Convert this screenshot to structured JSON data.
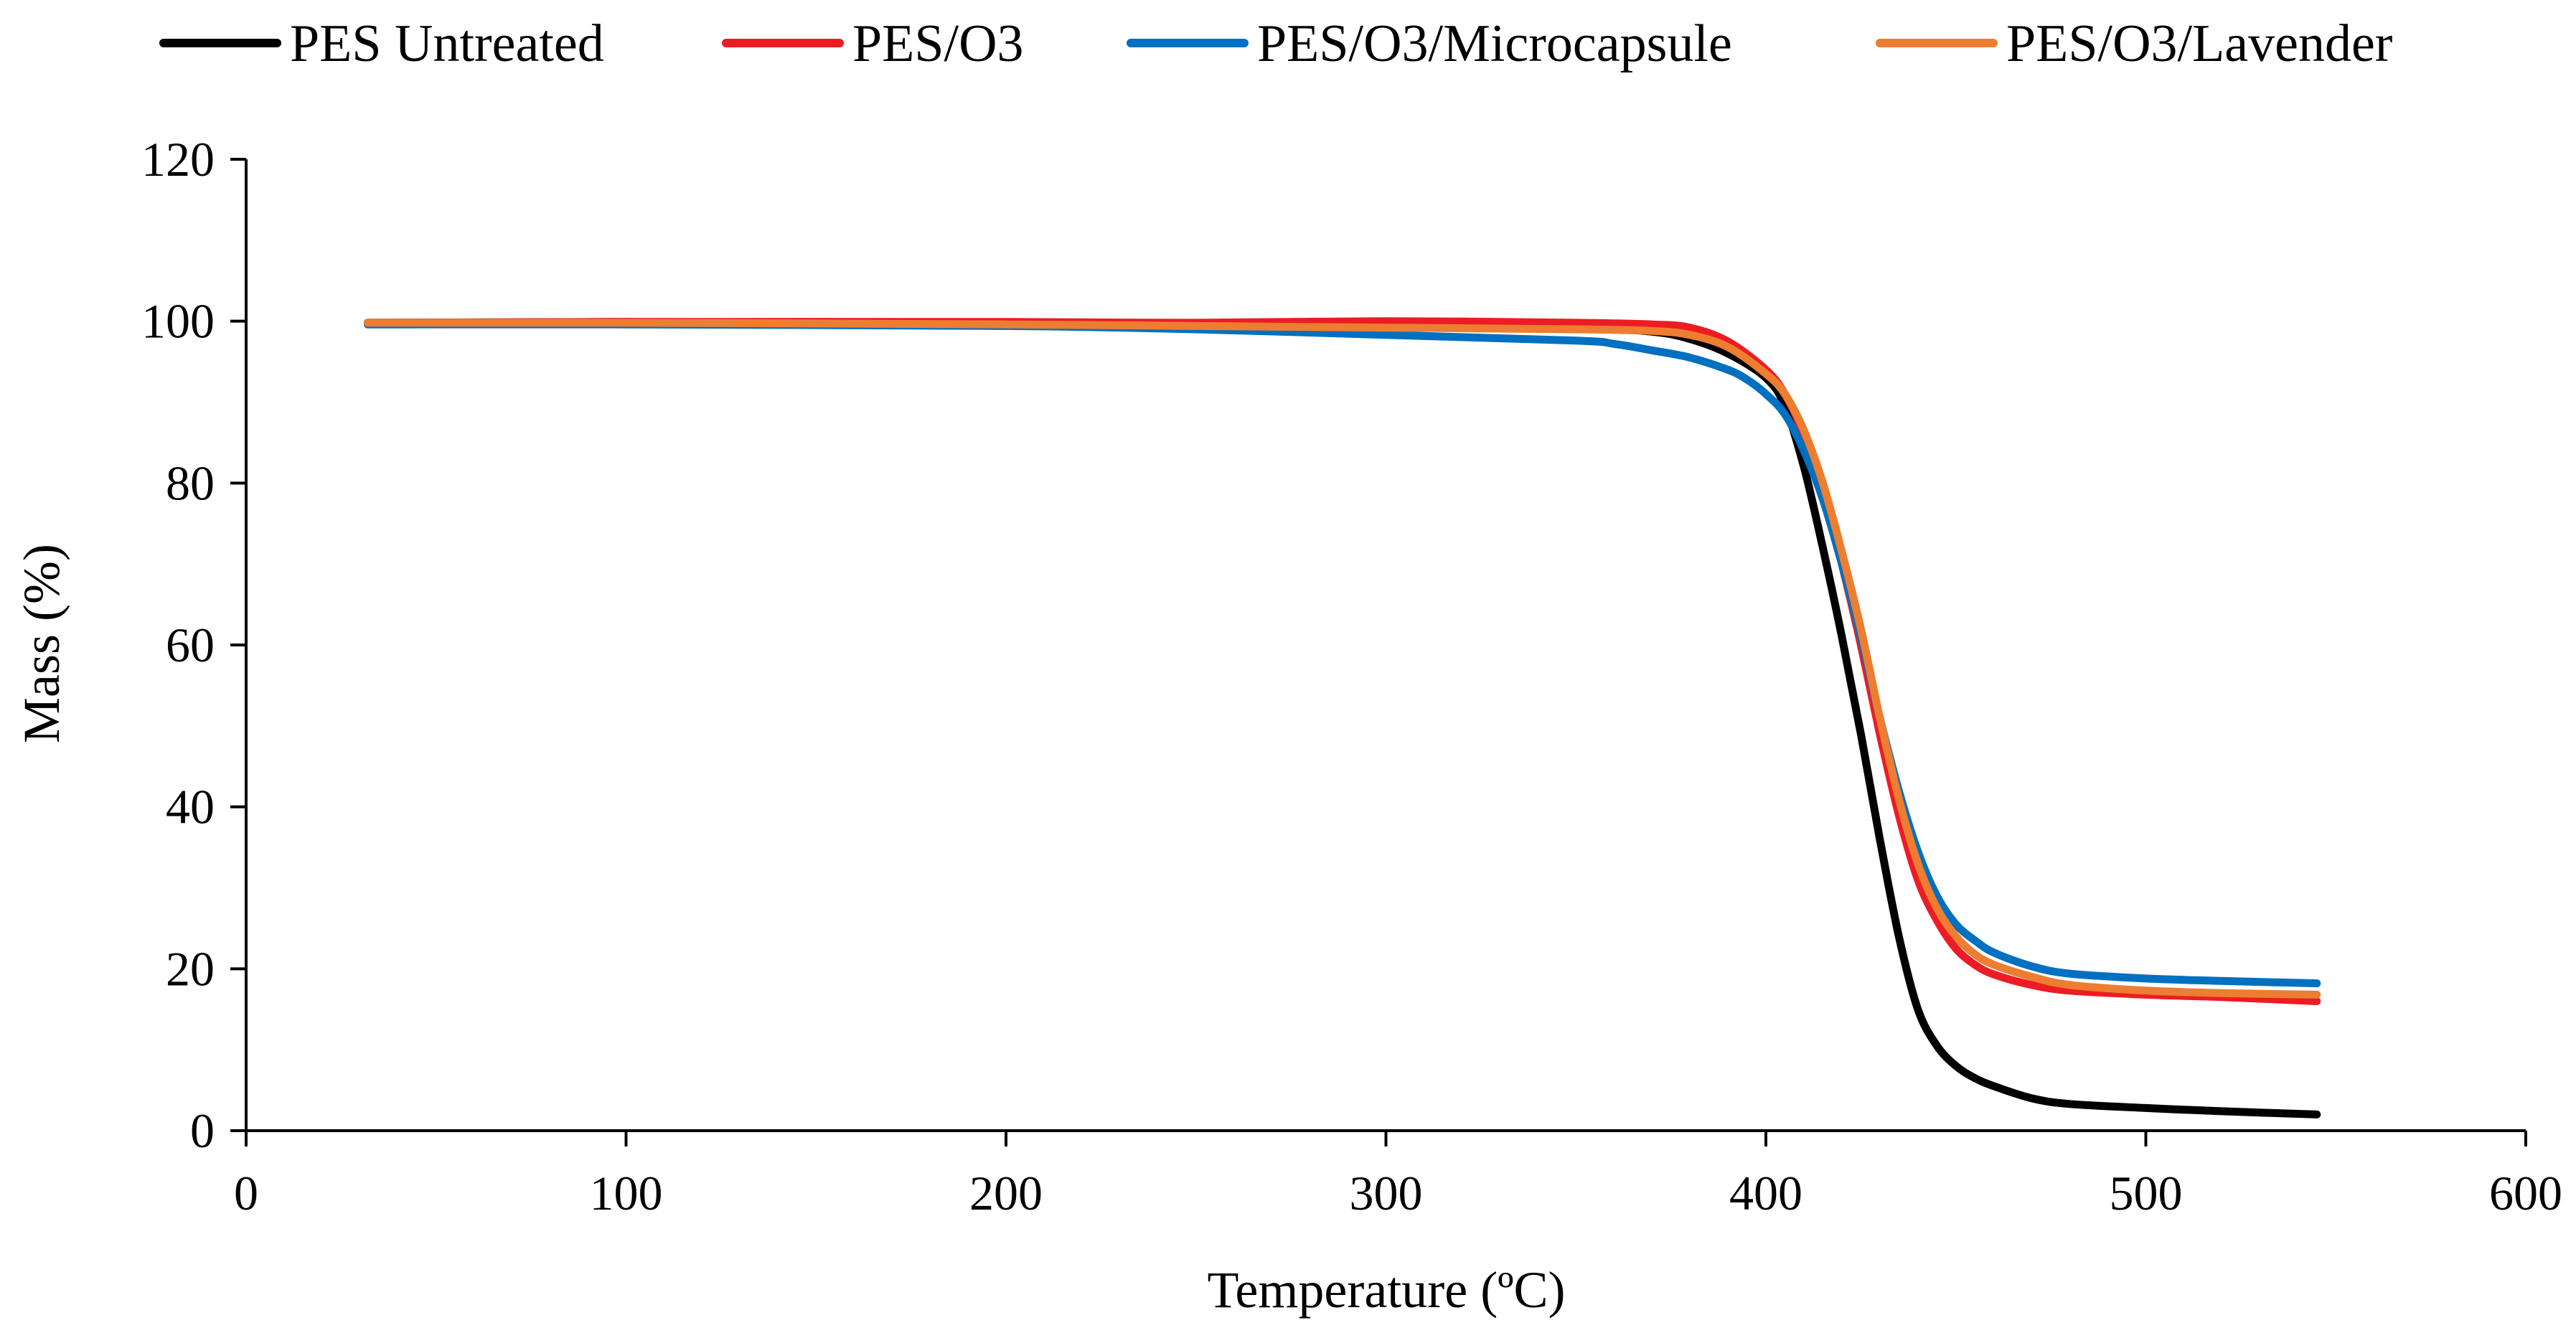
{
  "chart_data": {
    "type": "line",
    "title": "",
    "xlabel": "Temperature (ºC)",
    "ylabel": "Mass (%)",
    "xlim": [
      0,
      600
    ],
    "ylim": [
      0,
      120
    ],
    "xticks": [
      0,
      100,
      200,
      300,
      400,
      500,
      600
    ],
    "yticks": [
      0,
      20,
      40,
      60,
      80,
      100,
      120
    ],
    "xtick_labels": [
      "0",
      "100",
      "200",
      "300",
      "400",
      "500",
      "600"
    ],
    "ytick_labels": [
      "0",
      "20",
      "40",
      "60",
      "80",
      "100",
      "120"
    ],
    "grid": false,
    "legend_position": "top",
    "series": [
      {
        "name": "PES Untreated",
        "color": "#000000",
        "x": [
          32,
          100,
          200,
          250,
          300,
          350,
          370,
          380,
          390,
          400,
          405,
          410,
          415,
          420,
          425,
          430,
          435,
          440,
          445,
          450,
          455,
          460,
          470,
          480,
          500,
          520,
          545
        ],
        "y": [
          99.8,
          99.9,
          99.8,
          99.6,
          99.5,
          99.2,
          98.7,
          97.8,
          96.0,
          93.0,
          89.5,
          82.0,
          72.0,
          61.0,
          49.0,
          36.0,
          24.0,
          15.0,
          10.5,
          8.0,
          6.5,
          5.5,
          4.0,
          3.3,
          2.8,
          2.4,
          2.0
        ]
      },
      {
        "name": "PES/O3",
        "color": "#ED1C24",
        "x": [
          32,
          100,
          200,
          250,
          300,
          350,
          370,
          380,
          390,
          400,
          405,
          410,
          415,
          420,
          425,
          430,
          435,
          440,
          445,
          450,
          455,
          460,
          470,
          480,
          500,
          520,
          545
        ],
        "y": [
          99.8,
          99.9,
          99.9,
          99.8,
          100.0,
          99.8,
          99.6,
          99.2,
          97.5,
          94.0,
          91.0,
          86.0,
          79.0,
          70.0,
          60.0,
          49.0,
          39.0,
          31.0,
          26.0,
          22.5,
          20.5,
          19.3,
          18.0,
          17.3,
          16.8,
          16.5,
          16.0
        ]
      },
      {
        "name": "PES/O3/Microcapsule",
        "color": "#0070C0",
        "x": [
          32,
          100,
          200,
          250,
          300,
          350,
          360,
          370,
          380,
          390,
          395,
          400,
          405,
          410,
          415,
          420,
          425,
          430,
          435,
          440,
          445,
          450,
          455,
          460,
          470,
          480,
          500,
          520,
          545
        ],
        "y": [
          99.6,
          99.6,
          99.4,
          99.0,
          98.3,
          97.6,
          97.2,
          96.4,
          95.5,
          94.0,
          92.8,
          91.0,
          88.5,
          84.0,
          78.0,
          70.0,
          61.0,
          51.0,
          42.0,
          34.5,
          29.0,
          25.5,
          23.5,
          22.0,
          20.3,
          19.4,
          18.8,
          18.5,
          18.2
        ]
      },
      {
        "name": "PES/O3/Lavender",
        "color": "#ED7D31",
        "x": [
          32,
          100,
          200,
          250,
          300,
          350,
          370,
          380,
          390,
          400,
          405,
          410,
          415,
          420,
          425,
          430,
          435,
          440,
          445,
          450,
          455,
          460,
          470,
          480,
          500,
          520,
          545
        ],
        "y": [
          99.8,
          99.8,
          99.6,
          99.4,
          99.2,
          99.0,
          98.8,
          98.3,
          96.8,
          93.5,
          91.0,
          86.5,
          80.0,
          71.5,
          62.0,
          51.0,
          41.0,
          33.0,
          27.5,
          24.0,
          21.8,
          20.5,
          19.0,
          18.0,
          17.3,
          17.0,
          16.8
        ]
      }
    ]
  }
}
